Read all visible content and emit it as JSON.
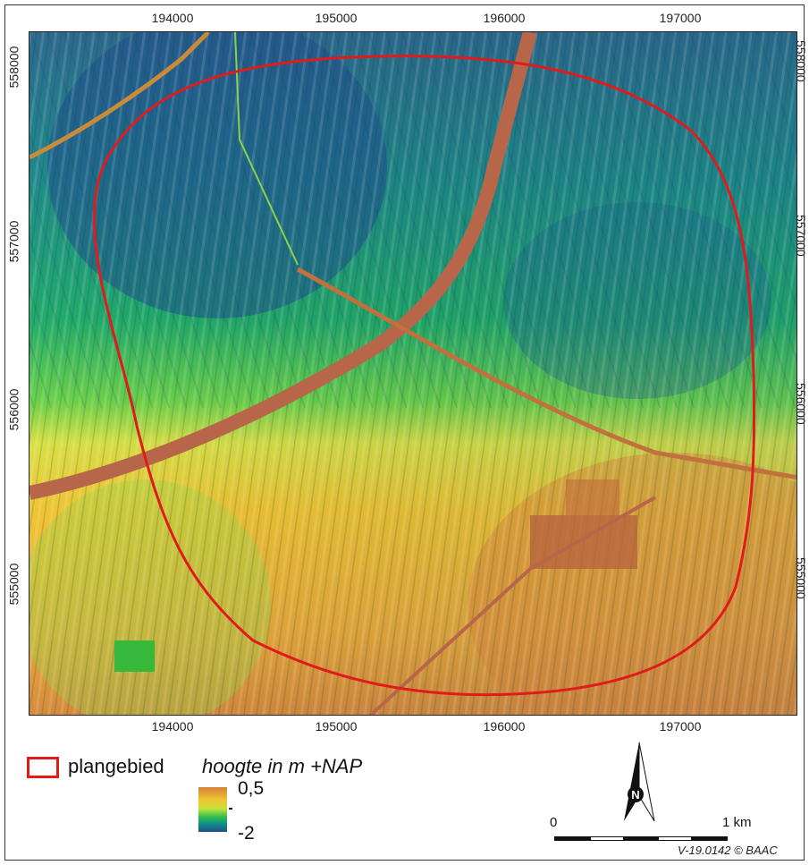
{
  "map": {
    "x_ticks": [
      "194000",
      "195000",
      "196000",
      "197000"
    ],
    "y_ticks": [
      "558000",
      "557000",
      "556000",
      "555000"
    ],
    "colors": {
      "high": "#d4803a",
      "mid": "#f0c430",
      "low": "#1f4f8a",
      "boundary": "#e11b1b",
      "road": "#b8664a"
    }
  },
  "legend": {
    "boundary_label": "plangebied",
    "height_title": "hoogte in m +NAP",
    "ramp_max": "0,5",
    "ramp_min": "-2"
  },
  "north_arrow": {
    "label": "N"
  },
  "scalebar": {
    "zero": "0",
    "end": "1 km"
  },
  "credit": "V-19.0142 © BAAC"
}
